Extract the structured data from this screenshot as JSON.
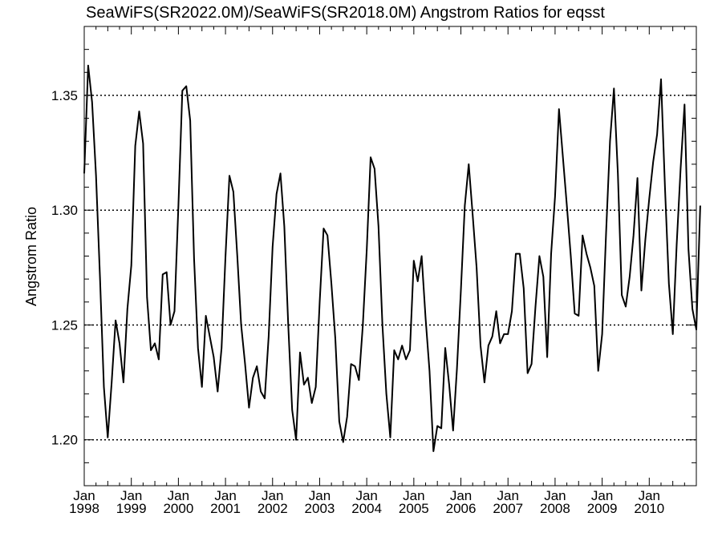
{
  "chart_data": {
    "type": "line",
    "title": "SeaWiFS(SR2022.0M)/SeaWiFS(SR2018.0M)  Angstrom Ratios for eqsst",
    "ylabel": "Angstrom Ratio",
    "xlabel": "",
    "xlim": [
      1998.0,
      2011.0
    ],
    "ylim": [
      1.18,
      1.38
    ],
    "grid": "horizontal dotted",
    "y_ticks": [
      {
        "value": 1.2,
        "label": "1.20"
      },
      {
        "value": 1.25,
        "label": "1.25"
      },
      {
        "value": 1.3,
        "label": "1.30"
      },
      {
        "value": 1.35,
        "label": "1.35"
      }
    ],
    "x_ticks": [
      {
        "value": 1998,
        "month": "Jan",
        "year": "1998"
      },
      {
        "value": 1999,
        "month": "Jan",
        "year": "1999"
      },
      {
        "value": 2000,
        "month": "Jan",
        "year": "2000"
      },
      {
        "value": 2001,
        "month": "Jan",
        "year": "2001"
      },
      {
        "value": 2002,
        "month": "Jan",
        "year": "2002"
      },
      {
        "value": 2003,
        "month": "Jan",
        "year": "2003"
      },
      {
        "value": 2004,
        "month": "Jan",
        "year": "2004"
      },
      {
        "value": 2005,
        "month": "Jan",
        "year": "2005"
      },
      {
        "value": 2006,
        "month": "Jan",
        "year": "2006"
      },
      {
        "value": 2007,
        "month": "Jan",
        "year": "2007"
      },
      {
        "value": 2008,
        "month": "Jan",
        "year": "2008"
      },
      {
        "value": 2009,
        "month": "Jan",
        "year": "2009"
      },
      {
        "value": 2010,
        "month": "Jan",
        "year": "2010"
      }
    ],
    "series": [
      {
        "x_start": 1998.0,
        "x_step_months": 1,
        "values": [
          1.316,
          1.363,
          1.347,
          1.315,
          1.271,
          1.223,
          1.201,
          1.225,
          1.252,
          1.242,
          1.225,
          1.257,
          1.276,
          1.328,
          1.343,
          1.329,
          1.262,
          1.239,
          1.242,
          1.235,
          1.272,
          1.273,
          1.25,
          1.256,
          1.302,
          1.352,
          1.354,
          1.339,
          1.279,
          1.24,
          1.223,
          1.254,
          1.245,
          1.236,
          1.221,
          1.24,
          1.28,
          1.315,
          1.308,
          1.28,
          1.25,
          1.233,
          1.214,
          1.227,
          1.232,
          1.221,
          1.218,
          1.245,
          1.284,
          1.307,
          1.316,
          1.293,
          1.25,
          1.213,
          1.2,
          1.238,
          1.224,
          1.227,
          1.216,
          1.223,
          1.26,
          1.292,
          1.289,
          1.268,
          1.244,
          1.208,
          1.199,
          1.21,
          1.233,
          1.232,
          1.226,
          1.25,
          1.283,
          1.323,
          1.318,
          1.293,
          1.25,
          1.22,
          1.201,
          1.239,
          1.235,
          1.241,
          1.235,
          1.239,
          1.278,
          1.269,
          1.28,
          1.253,
          1.23,
          1.195,
          1.206,
          1.205,
          1.24,
          1.224,
          1.204,
          1.231,
          1.265,
          1.302,
          1.32,
          1.298,
          1.275,
          1.241,
          1.225,
          1.241,
          1.245,
          1.256,
          1.242,
          1.246,
          1.246,
          1.256,
          1.281,
          1.281,
          1.266,
          1.229,
          1.233,
          1.258,
          1.28,
          1.271,
          1.236,
          1.281,
          1.306,
          1.344,
          1.323,
          1.302,
          1.28,
          1.255,
          1.254,
          1.289,
          1.281,
          1.275,
          1.267,
          1.23,
          1.246,
          1.29,
          1.33,
          1.353,
          1.316,
          1.263,
          1.258,
          1.271,
          1.289,
          1.314,
          1.265,
          1.287,
          1.305,
          1.321,
          1.333,
          1.357,
          1.31,
          1.268,
          1.246,
          1.285,
          1.318,
          1.346,
          1.283,
          1.257,
          1.248,
          1.302
        ]
      }
    ]
  }
}
